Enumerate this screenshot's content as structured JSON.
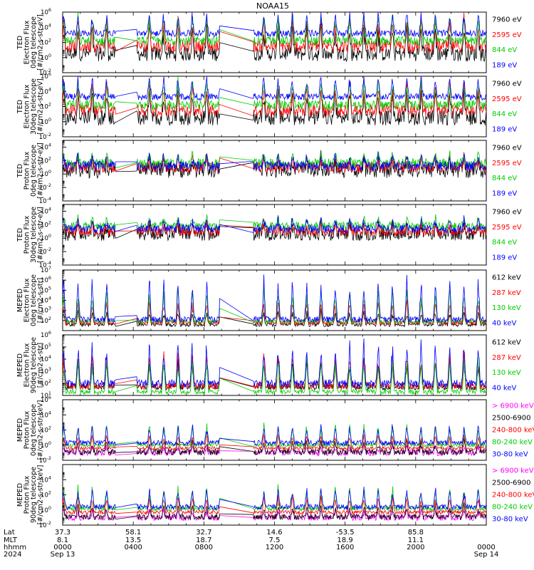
{
  "title": "NOAA15",
  "chart_data": [
    {
      "type": "line",
      "ylabel": [
        "TED",
        "Electron Flux",
        "0deg telescope",
        "[#/cm2-s-str-eV]"
      ],
      "y_log_range": [
        -2,
        6
      ],
      "y_ticks": [
        -2,
        0,
        2,
        4,
        6
      ],
      "series": [
        {
          "name": "7960 eV",
          "color": "#000000"
        },
        {
          "name": "2595 eV",
          "color": "#ff0000"
        },
        {
          "name": "844 eV",
          "color": "#00cc00"
        },
        {
          "name": "189 eV",
          "color": "#0000ff"
        }
      ],
      "base": [
        0.5,
        1.5,
        2.2,
        3.2
      ],
      "noise": [
        1.0,
        0.8,
        0.6,
        0.45
      ],
      "spike": [
        4.0,
        4.0,
        3.8,
        3.0
      ],
      "gaps": [
        [
          0.0,
          0.0
        ],
        [
          0.82,
          1.02
        ],
        [
          1.02,
          1.22
        ]
      ]
    },
    {
      "type": "line",
      "ylabel": [
        "TED",
        "Electron Flux",
        "30deg telescope",
        "[#/cm2-s-str-eV]"
      ],
      "y_log_range": [
        -2,
        6
      ],
      "y_ticks": [
        -2,
        0,
        2,
        4,
        6
      ],
      "series": [
        {
          "name": "7960 eV",
          "color": "#000000"
        },
        {
          "name": "2595 eV",
          "color": "#ff0000"
        },
        {
          "name": "844 eV",
          "color": "#00cc00"
        },
        {
          "name": "189 eV",
          "color": "#0000ff"
        }
      ],
      "base": [
        0.5,
        1.5,
        2.2,
        3.3
      ],
      "noise": [
        1.0,
        0.8,
        0.6,
        0.45
      ],
      "spike": [
        4.0,
        4.0,
        3.8,
        3.0
      ],
      "gaps": []
    },
    {
      "type": "line",
      "ylabel": [
        "TED",
        "Proton Flux",
        "0deg telescope",
        "[#/cm2-s-str-eV]"
      ],
      "y_log_range": [
        -4,
        5
      ],
      "y_ticks": [
        -4,
        -2,
        0,
        2,
        4
      ],
      "series": [
        {
          "name": "7960 eV",
          "color": "#000000"
        },
        {
          "name": "2595 eV",
          "color": "#ff0000"
        },
        {
          "name": "844 eV",
          "color": "#00cc00"
        },
        {
          "name": "189 eV",
          "color": "#0000ff"
        }
      ],
      "base": [
        0.6,
        1.0,
        1.6,
        1.2
      ],
      "noise": [
        1.2,
        0.8,
        0.7,
        0.7
      ],
      "spike": [
        1.8,
        1.8,
        1.6,
        1.8
      ],
      "gaps": []
    },
    {
      "type": "line",
      "ylabel": [
        "TED",
        "Proton Flux",
        "30deg telescope",
        "[#/cm2-s-str-eV]"
      ],
      "y_log_range": [
        -4,
        5
      ],
      "y_ticks": [
        -4,
        -2,
        0,
        2,
        4
      ],
      "series": [
        {
          "name": "7960 eV",
          "color": "#000000"
        },
        {
          "name": "2595 eV",
          "color": "#ff0000"
        },
        {
          "name": "844 eV",
          "color": "#00cc00"
        },
        {
          "name": "189 eV",
          "color": "#0000ff"
        }
      ],
      "base": [
        0.6,
        1.0,
        1.8,
        1.4
      ],
      "noise": [
        1.0,
        0.7,
        0.6,
        0.6
      ],
      "spike": [
        1.6,
        1.6,
        1.4,
        1.6
      ],
      "gaps": []
    },
    {
      "type": "line",
      "ylabel": [
        "MEPED",
        "Electron Flux",
        "0deg telescope",
        "[#/cm2-s-str]"
      ],
      "y_log_range": [
        1,
        7
      ],
      "y_ticks": [
        2,
        3,
        4,
        5,
        6,
        7
      ],
      "series": [
        {
          "name": "612 keV",
          "color": "#000000"
        },
        {
          "name": "287 keV",
          "color": "#ff0000"
        },
        {
          "name": "130 keV",
          "color": "#00cc00"
        },
        {
          "name": "40 keV",
          "color": "#0000ff"
        }
      ],
      "base": [
        1.6,
        1.8,
        1.9,
        2.1
      ],
      "noise": [
        0.2,
        0.25,
        0.2,
        0.3
      ],
      "spike": [
        1.5,
        2.5,
        3.5,
        4.5
      ],
      "gaps": []
    },
    {
      "type": "line",
      "ylabel": [
        "MEPED",
        "Electron Flux",
        "90deg telescope",
        "[#/cm2-s-str]"
      ],
      "y_log_range": [
        1,
        6
      ],
      "y_ticks": [
        1,
        2,
        3,
        4,
        5,
        6
      ],
      "series": [
        {
          "name": "612 keV",
          "color": "#000000"
        },
        {
          "name": "287 keV",
          "color": "#ff0000"
        },
        {
          "name": "130 keV",
          "color": "#00cc00"
        },
        {
          "name": "40 keV",
          "color": "#0000ff"
        }
      ],
      "base": [
        1.7,
        1.8,
        1.3,
        2.0
      ],
      "noise": [
        0.25,
        0.3,
        0.2,
        0.3
      ],
      "spike": [
        2.5,
        3.0,
        3.0,
        3.8
      ],
      "gaps": []
    },
    {
      "type": "line",
      "ylabel": [
        "MEPED",
        "Proton Flux",
        "0deg telescope",
        "[#/cm2-s-str-keV]"
      ],
      "y_log_range": [
        -2,
        6
      ],
      "y_ticks": [
        -2,
        0,
        2,
        4,
        6
      ],
      "series": [
        {
          "name": "> 6900 keV",
          "color": "#ff00ff"
        },
        {
          "name": "2500-6900",
          "color": "#000000"
        },
        {
          "name": "240-800 keV",
          "color": "#ff0000"
        },
        {
          "name": "80-240 keV",
          "color": "#00cc00"
        },
        {
          "name": "30-80 keV",
          "color": "#0000ff"
        }
      ],
      "base": [
        -1.0,
        -0.9,
        -0.4,
        0.0,
        0.3
      ],
      "noise": [
        0.4,
        0.4,
        0.2,
        0.25,
        0.35
      ],
      "spike": [
        1.0,
        1.6,
        2.0,
        3.2,
        2.6
      ],
      "gaps": []
    },
    {
      "type": "line",
      "ylabel": [
        "MEPED",
        "Proton Flux",
        "90deg telescope",
        "[#/cm2-s-str-keV]"
      ],
      "y_log_range": [
        -2,
        6
      ],
      "y_ticks": [
        -2,
        0,
        2,
        4
      ],
      "series": [
        {
          "name": "> 6900 keV",
          "color": "#ff00ff"
        },
        {
          "name": "2500-6900",
          "color": "#000000"
        },
        {
          "name": "240-800 keV",
          "color": "#ff0000"
        },
        {
          "name": "80-240 keV",
          "color": "#00cc00"
        },
        {
          "name": "30-80 keV",
          "color": "#0000ff"
        }
      ],
      "base": [
        -1.0,
        -0.9,
        -0.3,
        0.2,
        0.4
      ],
      "noise": [
        0.4,
        0.4,
        0.25,
        0.3,
        0.35
      ],
      "spike": [
        1.0,
        1.6,
        2.3,
        3.2,
        2.8
      ],
      "gaps": []
    }
  ],
  "x_axis": {
    "range_hours": [
      0,
      24
    ],
    "data_gaps_hours": [
      [
        3.0,
        4.2
      ],
      [
        8.9,
        10.8
      ]
    ],
    "rows": [
      {
        "label": "Lat",
        "values": [
          "37.3",
          "58.1",
          "32.7",
          "14.6",
          "-53.5",
          "85.8"
        ]
      },
      {
        "label": "MLT",
        "values": [
          "8.1",
          "13.5",
          "18.7",
          "7.5",
          "18.9",
          "11.1"
        ]
      },
      {
        "label": "hhmm",
        "values": [
          "0000",
          "0400",
          "0800",
          "1200",
          "1600",
          "2000",
          "0000"
        ]
      },
      {
        "label": "2024",
        "values": [
          "Sep 13",
          "",
          "",
          "",
          "",
          "",
          "Sep 14"
        ]
      }
    ]
  }
}
